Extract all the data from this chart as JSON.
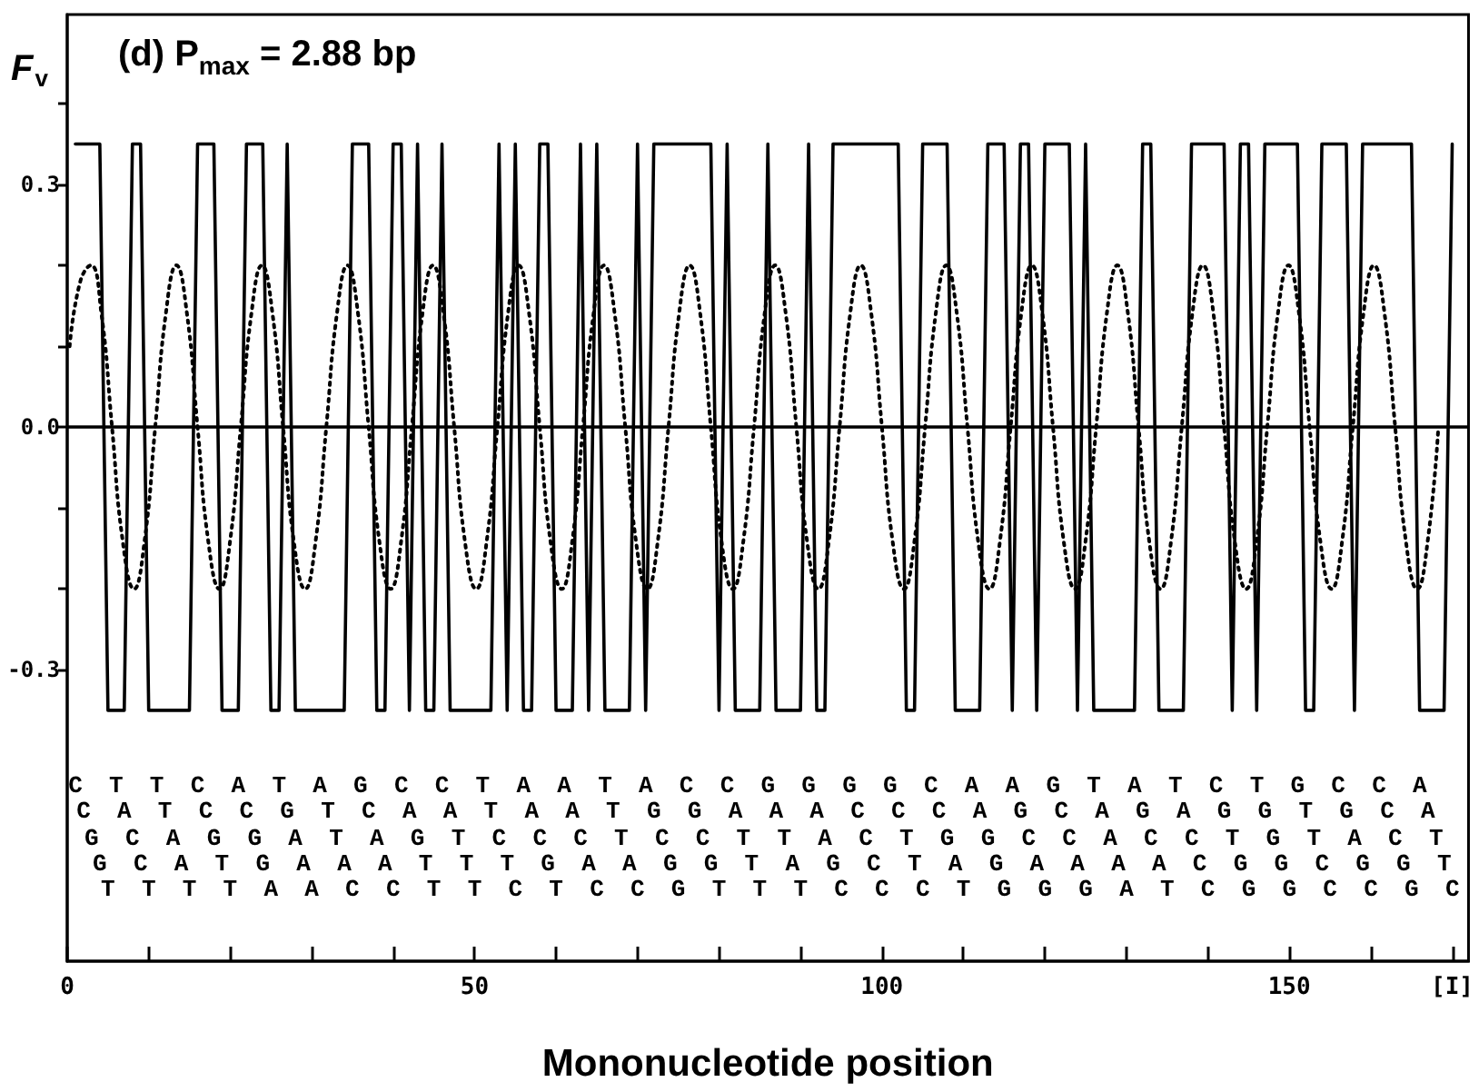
{
  "chart_data": {
    "type": "line",
    "title": "(d) P$_{max}$ = 2.88 bp",
    "xlabel": "Mononucleotide position",
    "ylabel": "F$_{v}$",
    "xlim": [
      0,
      172
    ],
    "xticks": [
      0,
      {
        "value": 10,
        "label": null
      },
      {
        "value": 20,
        "label": null
      },
      {
        "value": 30,
        "label": null
      },
      {
        "value": 40,
        "label": null
      },
      50,
      {
        "value": 60,
        "label": null
      },
      {
        "value": 70,
        "label": null
      },
      {
        "value": 80,
        "label": null
      },
      {
        "value": 90,
        "label": null
      },
      100,
      {
        "value": 110,
        "label": null
      },
      {
        "value": 120,
        "label": null
      },
      {
        "value": 130,
        "label": null
      },
      {
        "value": 140,
        "label": null
      },
      150,
      {
        "value": 160,
        "label": null
      },
      {
        "value": 170,
        "label": "[I]"
      }
    ],
    "ylim": [
      -0.66,
      0.51
    ],
    "yticks": [
      -0.3,
      {
        "value": -0.2,
        "label": null
      },
      {
        "value": -0.1,
        "label": null
      },
      {
        "value": 0,
        "label": "0.0"
      },
      {
        "value": 0.1,
        "label": null
      },
      {
        "value": 0.2,
        "label": null
      },
      0.3,
      {
        "value": 0.4,
        "label": null
      }
    ],
    "grid": false,
    "ref_lines": [
      {
        "axis": "y",
        "value": 0,
        "color": "#000000"
      }
    ],
    "annotations": [
      "C T T C A T A G C C T A A T A C C G G G G C A A G T A T C T G C C A",
      "C A T C C G T C A A T A A T G G A A A C C C A G C A G A G G T G C A",
      "G C A G G A T A G T C C C T C C T T A C T G G C C A C C T G T A C T",
      "G C A T G A A A T T T G A A G G T A G C T A G A A A A C G G C G G T",
      "T T T T A A C C T T C T C C G T T T C C C T G G G A T C G G C C G C"
    ],
    "series": [
      {
        "color": "#000000",
        "line_style": "solid",
        "marker": "none",
        "x": [
          1,
          2,
          3,
          4,
          5,
          6,
          7,
          8,
          9,
          10,
          11,
          12,
          13,
          14,
          15,
          16,
          17,
          18,
          19,
          20,
          21,
          22,
          23,
          24,
          25,
          26,
          27,
          28,
          29,
          30,
          31,
          32,
          33,
          34,
          35,
          36,
          37,
          38,
          39,
          40,
          41,
          42,
          43,
          44,
          45,
          46,
          47,
          48,
          49,
          50,
          51,
          52,
          53,
          54,
          55,
          56,
          57,
          58,
          59,
          60,
          61,
          62,
          63,
          64,
          65,
          66,
          67,
          68,
          69,
          70,
          71,
          72,
          73,
          74,
          75,
          76,
          77,
          78,
          79,
          80,
          81,
          82,
          83,
          84,
          85,
          86,
          87,
          88,
          89,
          90,
          91,
          92,
          93,
          94,
          95,
          96,
          97,
          98,
          99,
          100,
          101,
          102,
          103,
          104,
          105,
          106,
          107,
          108,
          109,
          110,
          111,
          112,
          113,
          114,
          115,
          116,
          117,
          118,
          119,
          120,
          121,
          122,
          123,
          124,
          125,
          126,
          127,
          128,
          129,
          130,
          131,
          132,
          133,
          134,
          135,
          136,
          137,
          138,
          139,
          140,
          141,
          142,
          143,
          144,
          145,
          146,
          147,
          148,
          149,
          150,
          151,
          152,
          153,
          154,
          155,
          156,
          157,
          158,
          159,
          160,
          161,
          162,
          163,
          164,
          165,
          166,
          167,
          168,
          169,
          170
        ],
        "values": [
          0.35,
          0.35,
          0.35,
          0.35,
          -0.35,
          -0.35,
          -0.35,
          0.35,
          0.35,
          -0.35,
          -0.35,
          -0.35,
          -0.35,
          -0.35,
          -0.35,
          0.35,
          0.35,
          0.35,
          -0.35,
          -0.35,
          -0.35,
          0.35,
          0.35,
          0.35,
          -0.35,
          -0.35,
          0.35,
          -0.35,
          -0.35,
          -0.35,
          -0.35,
          -0.35,
          -0.35,
          -0.35,
          0.35,
          0.35,
          0.35,
          -0.35,
          -0.35,
          0.35,
          0.35,
          -0.35,
          0.35,
          -0.35,
          -0.35,
          0.35,
          -0.35,
          -0.35,
          -0.35,
          -0.35,
          -0.35,
          -0.35,
          0.35,
          -0.35,
          0.35,
          -0.35,
          -0.35,
          0.35,
          0.35,
          -0.35,
          -0.35,
          -0.35,
          0.35,
          -0.35,
          0.35,
          -0.35,
          -0.35,
          -0.35,
          -0.35,
          0.35,
          -0.35,
          0.35,
          0.35,
          0.35,
          0.35,
          0.35,
          0.35,
          0.35,
          0.35,
          -0.35,
          0.35,
          -0.35,
          -0.35,
          -0.35,
          -0.35,
          0.35,
          -0.35,
          -0.35,
          -0.35,
          -0.35,
          0.35,
          -0.35,
          -0.35,
          0.35,
          0.35,
          0.35,
          0.35,
          0.35,
          0.35,
          0.35,
          0.35,
          0.35,
          -0.35,
          -0.35,
          0.35,
          0.35,
          0.35,
          0.35,
          -0.35,
          -0.35,
          -0.35,
          -0.35,
          0.35,
          0.35,
          0.35,
          -0.35,
          0.35,
          0.35,
          -0.35,
          0.35,
          0.35,
          0.35,
          0.35,
          -0.35,
          0.35,
          -0.35,
          -0.35,
          -0.35,
          -0.35,
          -0.35,
          -0.35,
          0.35,
          0.35,
          -0.35,
          -0.35,
          -0.35,
          -0.35,
          0.35,
          0.35,
          0.35,
          0.35,
          0.35,
          -0.35,
          0.35,
          0.35,
          -0.35,
          0.35,
          0.35,
          0.35,
          0.35,
          0.35,
          -0.35,
          -0.35,
          0.35,
          0.35,
          0.35,
          0.35,
          -0.35,
          0.35,
          0.35,
          0.35,
          0.35,
          0.35,
          0.35,
          0.35,
          -0.35,
          -0.35,
          -0.35,
          -0.35,
          0.35
        ]
      },
      {
        "color": "#000000",
        "line_style": "dotted",
        "marker": "none",
        "x": [
          0.3,
          1.6,
          2.9,
          4.2,
          5.5,
          6.8,
          8.2,
          9.5,
          10.8,
          12.1,
          13.4,
          14.7,
          16,
          17.3,
          18.7,
          20,
          21.3,
          22.6,
          23.9,
          25.2,
          26.5,
          27.8,
          29.2,
          30.5,
          31.8,
          33.1,
          34.4,
          35.7,
          37,
          38.3,
          39.7,
          41,
          42.3,
          43.6,
          44.9,
          46.2,
          47.5,
          48.8,
          50.2,
          51.5,
          52.8,
          54.1,
          55.4,
          56.7,
          58,
          59.3,
          60.7,
          62,
          63.3,
          64.6,
          65.9,
          67.2,
          68.5,
          69.8,
          71.2,
          72.5,
          73.8,
          75.1,
          76.4,
          77.7,
          79,
          80.3,
          81.7,
          83,
          84.3,
          85.6,
          86.9,
          88.2,
          89.5,
          90.8,
          92.2,
          93.5,
          94.8,
          96.1,
          97.4,
          98.7,
          100,
          101.3,
          102.7,
          104,
          105.3,
          106.6,
          107.9,
          109.2,
          110.5,
          111.8,
          113.2,
          114.5,
          115.8,
          117.1,
          118.4,
          119.7,
          121,
          122.3,
          123.7,
          125,
          126.3,
          127.6,
          128.9,
          130.2,
          131.5,
          132.8,
          134.2,
          135.5,
          136.8,
          138.1,
          139.4,
          140.7,
          142,
          143.3,
          144.7,
          146,
          147.3,
          148.6,
          149.9,
          151.2,
          152.5,
          153.8,
          155.2,
          156.5,
          157.8,
          159.1,
          160.4,
          161.7,
          163,
          164.3,
          165.7,
          167,
          168.3
        ],
        "values": [
          0.1,
          0.18,
          0.2,
          0.14,
          0,
          -0.14,
          -0.2,
          -0.14,
          0,
          0.14,
          0.2,
          0.14,
          0,
          -0.14,
          -0.2,
          -0.14,
          0,
          0.14,
          0.2,
          0.14,
          0,
          -0.14,
          -0.2,
          -0.14,
          0,
          0.14,
          0.2,
          0.14,
          0,
          -0.14,
          -0.2,
          -0.14,
          0,
          0.14,
          0.2,
          0.14,
          0,
          -0.14,
          -0.2,
          -0.14,
          0,
          0.14,
          0.2,
          0.14,
          0,
          -0.14,
          -0.2,
          -0.14,
          0,
          0.14,
          0.2,
          0.14,
          0,
          -0.14,
          -0.2,
          -0.14,
          0,
          0.14,
          0.2,
          0.14,
          0,
          -0.14,
          -0.2,
          -0.14,
          0,
          0.14,
          0.2,
          0.14,
          0,
          -0.14,
          -0.2,
          -0.14,
          0,
          0.14,
          0.2,
          0.14,
          0,
          -0.14,
          -0.2,
          -0.14,
          0,
          0.14,
          0.2,
          0.14,
          0,
          -0.14,
          -0.2,
          -0.14,
          0,
          0.14,
          0.2,
          0.14,
          0,
          -0.14,
          -0.2,
          -0.14,
          0,
          0.14,
          0.2,
          0.14,
          0,
          -0.14,
          -0.2,
          -0.14,
          0,
          0.14,
          0.2,
          0.14,
          0,
          -0.14,
          -0.2,
          -0.14,
          0,
          0.14,
          0.2,
          0.14,
          0,
          -0.14,
          -0.2,
          -0.14,
          0,
          0.14,
          0.2,
          0.14,
          0,
          -0.14,
          -0.2,
          -0.14,
          0
        ]
      }
    ]
  }
}
